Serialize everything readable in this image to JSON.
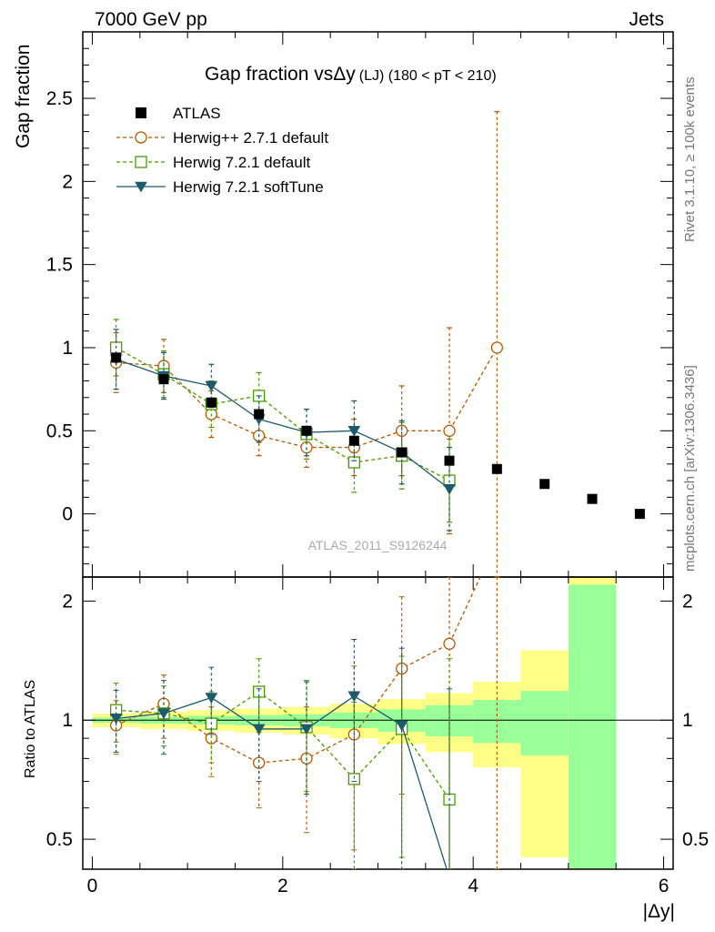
{
  "header": {
    "left": "7000 GeV pp",
    "right": "Jets",
    "side_top": "Rivet 3.1.10, ≥ 100k events",
    "side_bottom": "mcplots.cern.ch [arXiv:1306.3436]",
    "watermark": "ATLAS_2011_S9126244"
  },
  "chart_data": {
    "type": "scatter",
    "title_main": "Gap fraction vsΔy",
    "title_sub": "(LJ) (180 < pT < 210)",
    "ylabel": "Gap fraction",
    "ratio_ylabel": "Ratio to ATLAS",
    "xlabel": "|Δy|",
    "xlim": [
      -0.1,
      6.1
    ],
    "ylim": [
      -0.38,
      2.9
    ],
    "ratio_ylim": [
      0.42,
      2.3
    ],
    "xticks": [
      "0",
      "2",
      "4",
      "6"
    ],
    "yticks": [
      "0",
      "0.5",
      "1",
      "1.5",
      "2",
      "2.5"
    ],
    "ratio_yticks": [
      "0.5",
      "1",
      "2"
    ],
    "legend_position": "top-left",
    "data": {
      "name": "ATLAS",
      "x": [
        0.25,
        0.75,
        1.25,
        1.75,
        2.25,
        2.75,
        3.25,
        3.75,
        4.25,
        4.75,
        5.25,
        5.75
      ],
      "y": [
        0.94,
        0.81,
        0.67,
        0.6,
        0.5,
        0.44,
        0.37,
        0.32,
        0.27,
        0.18,
        0.09,
        0.0
      ],
      "color": "#000000"
    },
    "series": [
      {
        "name": "Herwig++ 2.7.1 default",
        "color": "#b35900",
        "marker": "circle",
        "dash": "4,3",
        "x": [
          0.25,
          0.75,
          1.25,
          1.75,
          2.25,
          2.75,
          3.25,
          3.75,
          4.25
        ],
        "y": [
          0.91,
          0.89,
          0.6,
          0.47,
          0.4,
          0.4,
          0.5,
          0.5,
          1.0
        ],
        "err": [
          0.18,
          0.16,
          0.14,
          0.12,
          0.12,
          0.17,
          0.27,
          0.62,
          1.42
        ],
        "ratio": [
          0.97,
          1.1,
          0.9,
          0.78,
          0.8,
          0.92,
          1.35,
          1.56,
          3.7
        ],
        "ratio_err": [
          0.15,
          0.2,
          0.18,
          0.18,
          0.28,
          0.45,
          0.7,
          1.4,
          4.0
        ]
      },
      {
        "name": "Herwig 7.2.1 default",
        "color": "#4c9a00",
        "marker": "square",
        "dash": "4,3",
        "x": [
          0.25,
          0.75,
          1.25,
          1.75,
          2.25,
          2.75,
          3.25,
          3.75
        ],
        "y": [
          1.0,
          0.84,
          0.66,
          0.71,
          0.48,
          0.31,
          0.35,
          0.2
        ],
        "err": [
          0.17,
          0.14,
          0.14,
          0.14,
          0.15,
          0.18,
          0.2,
          0.25
        ],
        "ratio": [
          1.06,
          1.04,
          0.98,
          1.18,
          0.96,
          0.71,
          0.95,
          0.63
        ],
        "ratio_err": [
          0.18,
          0.18,
          0.2,
          0.25,
          0.3,
          0.4,
          0.5,
          0.8
        ]
      },
      {
        "name": "Herwig 7.2.1 softTune",
        "color": "#1d5b6b",
        "marker": "triangle",
        "dash": "",
        "x": [
          0.25,
          0.75,
          1.25,
          1.75,
          2.25,
          2.75,
          3.25,
          3.75
        ],
        "y": [
          0.93,
          0.83,
          0.77,
          0.57,
          0.49,
          0.5,
          0.37,
          0.15
        ],
        "err": [
          0.18,
          0.14,
          0.13,
          0.14,
          0.14,
          0.18,
          0.19,
          0.25
        ],
        "ratio": [
          1.01,
          1.04,
          1.14,
          0.95,
          0.95,
          1.15,
          0.97,
          0.4
        ],
        "ratio_err": [
          0.18,
          0.22,
          0.22,
          0.25,
          0.3,
          0.45,
          0.55,
          0.8
        ]
      }
    ],
    "ratio_bands": {
      "x_low": [
        0.0,
        0.5,
        1.0,
        1.5,
        2.0,
        2.5,
        3.0,
        3.5,
        4.0,
        4.5,
        5.0
      ],
      "x_high": [
        0.5,
        1.0,
        1.5,
        2.0,
        2.5,
        3.0,
        3.5,
        4.0,
        4.5,
        5.0,
        5.5
      ],
      "inner_low": [
        0.985,
        0.98,
        0.975,
        0.97,
        0.965,
        0.955,
        0.935,
        0.91,
        0.875,
        0.815,
        0.4
      ],
      "inner_high": [
        1.015,
        1.02,
        1.025,
        1.03,
        1.035,
        1.045,
        1.065,
        1.09,
        1.125,
        1.185,
        2.2
      ],
      "outer_low": [
        0.96,
        0.95,
        0.94,
        0.93,
        0.92,
        0.9,
        0.87,
        0.83,
        0.76,
        0.45,
        0.4
      ],
      "outer_high": [
        1.04,
        1.05,
        1.06,
        1.07,
        1.08,
        1.1,
        1.13,
        1.17,
        1.25,
        1.5,
        2.3
      ],
      "inner_color": "#99ff99",
      "outer_color": "#ffff88"
    }
  }
}
